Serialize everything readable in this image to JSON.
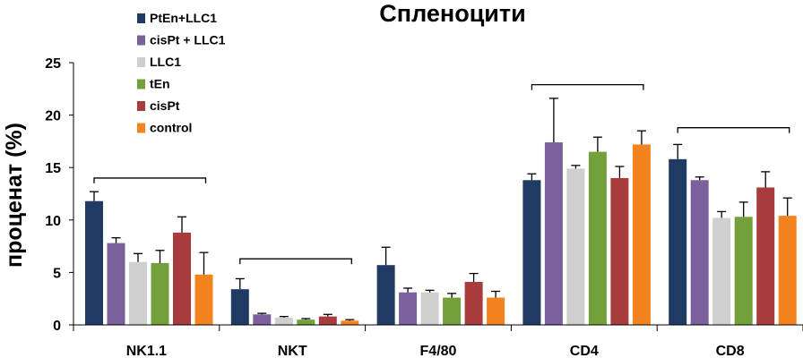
{
  "chart_data": {
    "type": "bar",
    "title": "Спленоцити",
    "xlabel": "",
    "ylabel": "проценат (%)",
    "ylim": [
      0,
      25
    ],
    "yticks": [
      0,
      5,
      10,
      15,
      20,
      25
    ],
    "categories": [
      "NK1.1",
      "NKT",
      "F4/80",
      "CD4",
      "CD8"
    ],
    "legend_position": "top-left",
    "series": [
      {
        "name": "PtEn+LLC1",
        "color": "#1f3a63",
        "values": [
          11.8,
          3.4,
          5.7,
          13.8,
          15.8
        ],
        "errors": [
          0.9,
          1.0,
          1.7,
          0.6,
          1.4
        ]
      },
      {
        "name": "cisPt + LLC1",
        "color": "#7a619e",
        "values": [
          7.8,
          1.0,
          3.1,
          17.4,
          13.8
        ],
        "errors": [
          0.5,
          0.1,
          0.4,
          4.2,
          0.3
        ]
      },
      {
        "name": "LLC1",
        "color": "#cfcfcf",
        "values": [
          6.0,
          0.7,
          3.1,
          14.9,
          10.2
        ],
        "errors": [
          0.8,
          0.1,
          0.2,
          0.3,
          0.6
        ]
      },
      {
        "name": "tEn",
        "color": "#74a03c",
        "values": [
          5.9,
          0.5,
          2.6,
          16.5,
          10.3
        ],
        "errors": [
          1.2,
          0.1,
          0.4,
          1.4,
          1.4
        ]
      },
      {
        "name": "cisPt",
        "color": "#a83b3b",
        "values": [
          8.8,
          0.8,
          4.1,
          14.0,
          13.1
        ],
        "errors": [
          1.5,
          0.2,
          0.8,
          1.1,
          1.5
        ]
      },
      {
        "name": "control",
        "color": "#f3831f",
        "values": [
          4.8,
          0.4,
          2.6,
          17.2,
          10.4
        ],
        "errors": [
          2.1,
          0.1,
          0.6,
          1.3,
          1.7
        ]
      }
    ],
    "significance_brackets": [
      {
        "category": "NK1.1",
        "value": 14.0
      },
      {
        "category": "NKT",
        "value": 6.3
      },
      {
        "category": "CD4",
        "value": 22.9
      },
      {
        "category": "CD8",
        "value": 18.8
      }
    ]
  }
}
